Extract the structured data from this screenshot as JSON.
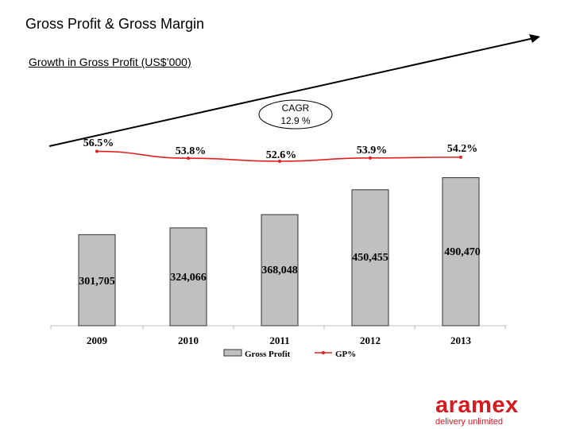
{
  "header": {
    "title": "Gross Profit & Gross Margin",
    "subtitle": "Growth in Gross Profit (US$’000)"
  },
  "chart_data": {
    "type": "bar",
    "categories": [
      "2009",
      "2010",
      "2011",
      "2012",
      "2013"
    ],
    "series": [
      {
        "name": "Gross Profit",
        "kind": "bar",
        "values": [
          301705,
          324066,
          368048,
          450455,
          490470
        ],
        "labels": [
          "301,705",
          "324,066",
          "368,048",
          "450,455",
          "490,470"
        ],
        "color": "#c0c0c0"
      },
      {
        "name": "GP%",
        "kind": "line",
        "values": [
          56.5,
          53.8,
          52.6,
          53.9,
          54.2
        ],
        "labels": [
          "56.5%",
          "53.8%",
          "52.6%",
          "53.9%",
          "54.2%"
        ],
        "color": "#e02020"
      }
    ],
    "annotation": {
      "line1": "CAGR",
      "line2": "12.9 %"
    },
    "title": "Growth in Gross Profit (US$’000)",
    "xlabel": "",
    "ylabel": "",
    "ylim": [
      0,
      600000
    ],
    "legend_position": "bottom"
  },
  "brand": {
    "name": "aramex",
    "tagline": "delivery unlimited",
    "color": "#d71920"
  }
}
